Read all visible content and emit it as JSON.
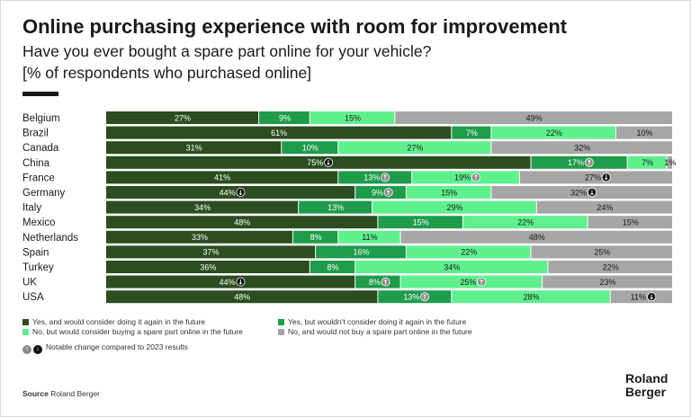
{
  "header": {
    "title": "Online purchasing experience with room for improvement",
    "subtitle": "Have you ever bought a spare part online for your vehicle?",
    "unit": "[% of respondents who purchased online]"
  },
  "chart_data": {
    "type": "bar",
    "orientation": "horizontal",
    "stacked": true,
    "percent_suffix": "%",
    "categories": [
      "Belgium",
      "Brazil",
      "Canada",
      "China",
      "France",
      "Germany",
      "Italy",
      "Mexico",
      "Netherlands",
      "Spain",
      "Turkey",
      "UK",
      "USA"
    ],
    "series": [
      {
        "name": "Yes, and would consider doing it again in the future",
        "color": "#2b4d1f",
        "label_color": "#ffffff",
        "values": [
          27,
          61,
          31,
          75,
          41,
          44,
          34,
          48,
          33,
          37,
          36,
          44,
          48
        ]
      },
      {
        "name": "Yes, but wouldn't consider doing it again in the future",
        "color": "#1e9c4a",
        "label_color": "#ffffff",
        "values": [
          9,
          7,
          10,
          17,
          13,
          9,
          13,
          15,
          8,
          16,
          8,
          8,
          13
        ]
      },
      {
        "name": "No, but would consider buying a spare part online in the future",
        "color": "#5ef08d",
        "label_color": "#1a1a1a",
        "values": [
          15,
          22,
          27,
          7,
          19,
          15,
          29,
          22,
          11,
          22,
          34,
          25,
          28
        ]
      },
      {
        "name": "No, and would not buy a spare part online in the future",
        "color": "#a6a6a6",
        "label_color": "#1a1a1a",
        "values": [
          49,
          10,
          32,
          1,
          27,
          32,
          24,
          15,
          48,
          25,
          22,
          23,
          11
        ]
      }
    ],
    "changes": [
      {
        "category": "China",
        "series": 0,
        "direction": "down"
      },
      {
        "category": "China",
        "series": 1,
        "direction": "up"
      },
      {
        "category": "France",
        "series": 1,
        "direction": "up"
      },
      {
        "category": "France",
        "series": 2,
        "direction": "up"
      },
      {
        "category": "France",
        "series": 3,
        "direction": "down"
      },
      {
        "category": "Germany",
        "series": 0,
        "direction": "down"
      },
      {
        "category": "Germany",
        "series": 1,
        "direction": "up"
      },
      {
        "category": "Germany",
        "series": 3,
        "direction": "down"
      },
      {
        "category": "UK",
        "series": 0,
        "direction": "down"
      },
      {
        "category": "UK",
        "series": 1,
        "direction": "up"
      },
      {
        "category": "UK",
        "series": 2,
        "direction": "up"
      },
      {
        "category": "USA",
        "series": 1,
        "direction": "up"
      },
      {
        "category": "USA",
        "series": 3,
        "direction": "down"
      }
    ],
    "xlim": [
      0,
      100
    ],
    "grid": false,
    "legend_position": "bottom"
  },
  "legend": {
    "items": [
      {
        "label": "Yes, and would consider doing it again in the future",
        "color": "#2b4d1f"
      },
      {
        "label": "Yes, but wouldn't consider doing it again in the future",
        "color": "#1e9c4a"
      },
      {
        "label": "No, but would consider buying a spare part online in the future",
        "color": "#5ef08d"
      },
      {
        "label": "No, and would not buy a spare part online in the future",
        "color": "#a6a6a6"
      }
    ],
    "note": "Notable change compared to 2023 results",
    "up_glyph": "↑",
    "down_glyph": "↓"
  },
  "footer": {
    "source_label": "Source",
    "source_text": " Roland Berger",
    "logo_line1": "Roland",
    "logo_line2": "Berger"
  }
}
